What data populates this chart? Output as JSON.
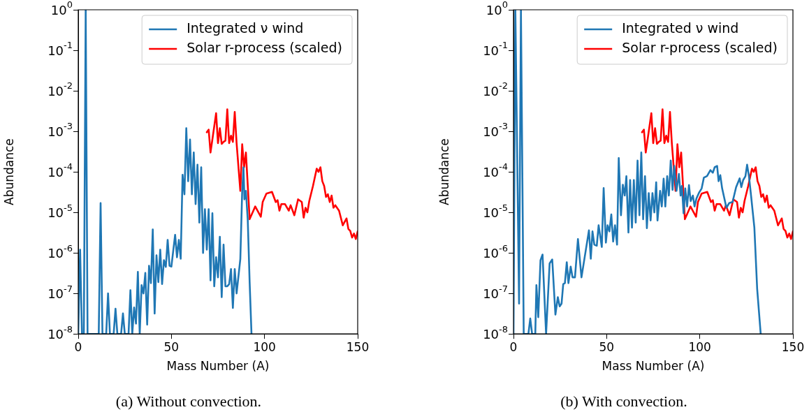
{
  "chart_data": [
    {
      "type": "line",
      "xlabel": "Mass Number (A)",
      "ylabel": "Abundance",
      "log": "y",
      "legend": "top right",
      "annotations": [
        "(a) Without convection."
      ],
      "xlim": [
        0,
        150
      ],
      "xticks": [
        0,
        50,
        100,
        150
      ],
      "ylim": [
        1e-08,
        1
      ],
      "yticks": [
        {
          "value": 1e-08,
          "label": "10$^{-8}$"
        },
        {
          "value": 1e-07,
          "label": "10$^{-7}$"
        },
        {
          "value": 1e-06,
          "label": "10$^{-6}$"
        },
        {
          "value": 1e-05,
          "label": "10$^{-5}$"
        },
        {
          "value": 0.0001,
          "label": "10$^{-4}$"
        },
        {
          "value": 0.001,
          "label": "10$^{-3}$"
        },
        {
          "value": 0.01,
          "label": "10$^{-2}$"
        },
        {
          "value": 0.1,
          "label": "10$^{-1}$"
        },
        {
          "value": 1,
          "label": "10$^{0}$"
        }
      ],
      "series": [
        {
          "name": "Integrated ν wind",
          "color": "#1f77b4",
          "x": [
            0,
            1,
            2,
            3,
            4,
            5,
            11,
            12,
            13,
            15,
            16,
            17,
            19,
            20,
            21,
            23,
            24,
            25,
            27,
            28,
            29,
            30,
            31,
            32,
            33,
            34,
            35,
            36,
            37,
            38,
            39,
            40,
            41,
            42,
            43,
            44,
            45,
            46,
            47,
            48,
            49,
            50,
            52,
            53,
            54,
            55,
            56,
            57,
            58,
            59,
            60,
            61,
            62,
            63,
            64,
            65,
            66,
            67,
            68,
            69,
            70,
            71,
            72,
            73,
            74,
            75,
            76,
            77,
            78,
            79,
            80,
            81,
            82,
            83,
            84,
            85,
            87,
            88,
            88.7,
            89.2,
            90,
            91,
            92,
            93
          ],
          "values": [
            1e-08,
            1.2e-06,
            1e-08,
            1e-08,
            1,
            1e-08,
            1e-08,
            1.7e-05,
            1e-08,
            1e-08,
            1e-07,
            1e-08,
            1e-08,
            4.2e-08,
            1e-08,
            1e-08,
            3.2e-08,
            1e-08,
            1e-08,
            1.2e-07,
            1e-08,
            4.5e-08,
            1.8e-08,
            3.4e-07,
            1e-08,
            1.6e-07,
            1e-07,
            3.2e-07,
            1.7e-08,
            4.8e-07,
            1.8e-07,
            3.8e-06,
            3.2e-08,
            8.7e-07,
            1.9e-07,
            1.2e-06,
            1.7e-07,
            6.6e-07,
            4.5e-07,
            2.1e-06,
            4.8e-07,
            4.6e-07,
            2.8e-06,
            7.8e-07,
            2.1e-06,
            7.2e-07,
            8.5e-05,
            2.8e-05,
            0.0012,
            5.9e-05,
            0.00063,
            2.8e-05,
            0.0003,
            1.6e-05,
            0.00015,
            5.6e-06,
            0.00013,
            1e-06,
            1.2e-05,
            1.2e-06,
            1.2e-05,
            2.1e-07,
            9.5e-06,
            1.5e-07,
            7.8e-07,
            2.5e-07,
            2.5e-06,
            8.1e-08,
            1.6e-06,
            1.5e-07,
            1.5e-07,
            1.7e-07,
            4e-07,
            4.4e-08,
            4e-07,
            1e-07,
            7.1e-07,
            3.4e-05,
            0.00013,
            2.1e-05,
            3.4e-05,
            6.3e-06,
            1.9e-07,
            1e-08
          ]
        },
        {
          "name": "Solar r-process (scaled)",
          "color": "#ff0000",
          "x": [
            69,
            70,
            71,
            72,
            74,
            75,
            76,
            77,
            78,
            79,
            80,
            81,
            82,
            83,
            84,
            85,
            87,
            88,
            89,
            90,
            92,
            94,
            95,
            98,
            99,
            101,
            104,
            106,
            107,
            108,
            109,
            111,
            113,
            114,
            116,
            118,
            120,
            121,
            122,
            123,
            124,
            126,
            128,
            129,
            130,
            131,
            132,
            133,
            134,
            135,
            136,
            137,
            138,
            140,
            142,
            144,
            145,
            146,
            147,
            148,
            149,
            150
          ],
          "values": [
            0.00095,
            0.0011,
            0.0003,
            0.00063,
            0.0028,
            0.00051,
            0.0012,
            0.00049,
            0.00055,
            0.00059,
            0.0035,
            0.00051,
            0.00078,
            0.00055,
            0.003,
            0.00051,
            3.4e-05,
            0.00048,
            0.00013,
            0.0003,
            6.8e-06,
            1.1e-05,
            1.4e-05,
            7.8e-06,
            1.8e-05,
            2.9e-05,
            3.2e-05,
            1.8e-05,
            2e-05,
            1.1e-05,
            1.6e-05,
            1.6e-05,
            1.1e-05,
            1.5e-05,
            8.5e-06,
            2.1e-05,
            1.8e-05,
            7.4e-06,
            1.3e-05,
            1e-05,
            1.9e-05,
            4.5e-05,
            0.00012,
            0.0001,
            0.00013,
            5.9e-05,
            4.5e-05,
            2.4e-05,
            2.8e-05,
            1.8e-05,
            2.6e-05,
            1.3e-05,
            1.5e-05,
            1.1e-05,
            4.8e-06,
            7.1e-06,
            3.9e-06,
            3.5e-06,
            2.4e-06,
            3e-06,
            2.2e-06,
            3.4e-06
          ]
        }
      ]
    },
    {
      "type": "line",
      "xlabel": "Mass Number (A)",
      "ylabel": "Abundance",
      "log": "y",
      "legend": "top right",
      "annotations": [
        "(b) With convection."
      ],
      "xlim": [
        0,
        150
      ],
      "xticks": [
        0,
        50,
        100,
        150
      ],
      "ylim": [
        1e-08,
        1
      ],
      "yticks": [
        {
          "value": 1e-08,
          "label": "10$^{-8}$"
        },
        {
          "value": 1e-07,
          "label": "10$^{-7}$"
        },
        {
          "value": 1e-06,
          "label": "10$^{-6}$"
        },
        {
          "value": 1e-05,
          "label": "10$^{-5}$"
        },
        {
          "value": 0.0001,
          "label": "10$^{-4}$"
        },
        {
          "value": 0.001,
          "label": "10$^{-3}$"
        },
        {
          "value": 0.01,
          "label": "10$^{-2}$"
        },
        {
          "value": 0.1,
          "label": "10$^{-1}$"
        },
        {
          "value": 1,
          "label": "10$^{0}$"
        }
      ],
      "series": [
        {
          "name": "Integrated ν wind",
          "color": "#1f77b4",
          "x": [
            0,
            1,
            3,
            4,
            5.5,
            8,
            9,
            10,
            11.7,
            12.3,
            13.3,
            14.5,
            15.6,
            17.5,
            19.4,
            20.8,
            22.5,
            23.8,
            24.8,
            25.8,
            26.7,
            27.6,
            28.6,
            29.5,
            30.7,
            31.7,
            33,
            34.6,
            36.5,
            40.5,
            41.5,
            42.4,
            43.4,
            44.7,
            45.7,
            47.4,
            48.4,
            49.6,
            50.5,
            51.5,
            52.5,
            53.5,
            54.5,
            55.6,
            56.5,
            57.7,
            58.7,
            59.7,
            60.6,
            61.7,
            62.6,
            63.6,
            64.6,
            65.6,
            66.6,
            67.6,
            68.6,
            69.6,
            70.6,
            71.6,
            72.6,
            73.6,
            74.6,
            75.6,
            76.6,
            77.3,
            78.7,
            79.6,
            80.6,
            81.5,
            82.5,
            83.4,
            84.4,
            85.4,
            86.3,
            87.5,
            88.8,
            89.7,
            90.4,
            91.3,
            92.2,
            93.2,
            94.2,
            95.1,
            96.3,
            97.2,
            98.2,
            99.5,
            101,
            102.2,
            103.9,
            105.7,
            107,
            108,
            109.3,
            110.1,
            111,
            112,
            114.3,
            115.8,
            117.6,
            119.5,
            121.4,
            122.3,
            123.3,
            124.5,
            125.4,
            126.4,
            127.6,
            128.5,
            129.3,
            130.8,
            132.7
          ],
          "values": [
            1e-08,
            1,
            5.6e-08,
            1,
            1e-08,
            1e-08,
            2.4e-08,
            1e-08,
            1e-08,
            1.6e-07,
            2.6e-08,
            6.6e-07,
            9.1e-07,
            1e-08,
            5.5e-07,
            6.9e-07,
            3e-08,
            8.1e-08,
            4.8e-08,
            5.6e-08,
            1.7e-07,
            1.8e-07,
            5.9e-07,
            1.8e-07,
            4.6e-07,
            2.5e-07,
            2.5e-07,
            2.2e-06,
            2.5e-07,
            3.6e-06,
            7.2e-07,
            3.4e-06,
            1.6e-06,
            1.5e-06,
            4.8e-06,
            1.4e-06,
            4e-05,
            1.8e-06,
            4.8e-06,
            3.4e-06,
            8.9e-06,
            1.9e-06,
            4.8e-06,
            1.6e-06,
            0.00022,
            8.5e-06,
            4.8e-05,
            2.6e-05,
            7.8e-05,
            3.2e-06,
            6.3e-05,
            4.2e-06,
            6.3e-05,
            5.6e-06,
            0.00019,
            8.5e-06,
            0.0003,
            6.8e-06,
            7.8e-05,
            4.1e-06,
            3e-05,
            6.3e-06,
            3e-05,
            1e-05,
            5.5e-05,
            6.3e-06,
            3.4e-05,
            1.4e-05,
            6.8e-05,
            1.4e-05,
            7.8e-05,
            2.6e-05,
            0.00019,
            3.6e-05,
            0.00014,
            3.4e-05,
            8.9e-05,
            2.6e-05,
            4.5e-05,
            9.5e-06,
            3.9e-05,
            1.4e-05,
            4.7e-05,
            1.9e-05,
            2.6e-05,
            1.4e-05,
            2.2e-05,
            3e-05,
            3.9e-05,
            7.2e-05,
            7.9e-05,
            0.00011,
            9.5e-05,
            0.00013,
            0.00014,
            5.9e-05,
            8.3e-05,
            3.9e-05,
            1.3e-05,
            1.7e-05,
            1.8e-05,
            4.2e-05,
            6.9e-05,
            4.2e-05,
            6.3e-05,
            7.8e-05,
            0.00015,
            7.8e-05,
            2.4e-05,
            9.5e-06,
            4.2e-06,
            1.3e-07,
            1e-08
          ]
        },
        {
          "name": "Solar r-process (scaled)",
          "color": "#ff0000",
          "x": [
            69,
            70,
            71,
            72,
            74,
            75,
            76,
            77,
            78,
            79,
            80,
            81,
            82,
            83,
            84,
            85,
            87,
            88,
            89,
            90,
            92,
            94,
            95,
            98,
            99,
            101,
            104,
            106,
            107,
            108,
            109,
            111,
            113,
            114,
            116,
            118,
            120,
            121,
            122,
            123,
            124,
            126,
            128,
            129,
            130,
            131,
            132,
            133,
            134,
            135,
            136,
            137,
            138,
            140,
            142,
            144,
            145,
            146,
            147,
            148,
            149,
            150
          ],
          "values": [
            0.00095,
            0.0011,
            0.0003,
            0.00063,
            0.0028,
            0.00051,
            0.0012,
            0.00049,
            0.00055,
            0.00059,
            0.0035,
            0.00051,
            0.00078,
            0.00055,
            0.003,
            0.00051,
            3.4e-05,
            0.00048,
            0.00013,
            0.0003,
            6.8e-06,
            1.1e-05,
            1.4e-05,
            7.8e-06,
            1.8e-05,
            2.9e-05,
            3.2e-05,
            1.8e-05,
            2e-05,
            1.1e-05,
            1.6e-05,
            1.6e-05,
            1.1e-05,
            1.5e-05,
            8.5e-06,
            2.1e-05,
            1.8e-05,
            7.4e-06,
            1.3e-05,
            1e-05,
            1.9e-05,
            4.5e-05,
            0.00012,
            0.0001,
            0.00013,
            5.9e-05,
            4.5e-05,
            2.4e-05,
            2.8e-05,
            1.8e-05,
            2.6e-05,
            1.3e-05,
            1.5e-05,
            1.1e-05,
            4.8e-06,
            7.1e-06,
            3.9e-06,
            3.5e-06,
            2.4e-06,
            3e-06,
            2.2e-06,
            3.4e-06
          ]
        }
      ]
    }
  ]
}
